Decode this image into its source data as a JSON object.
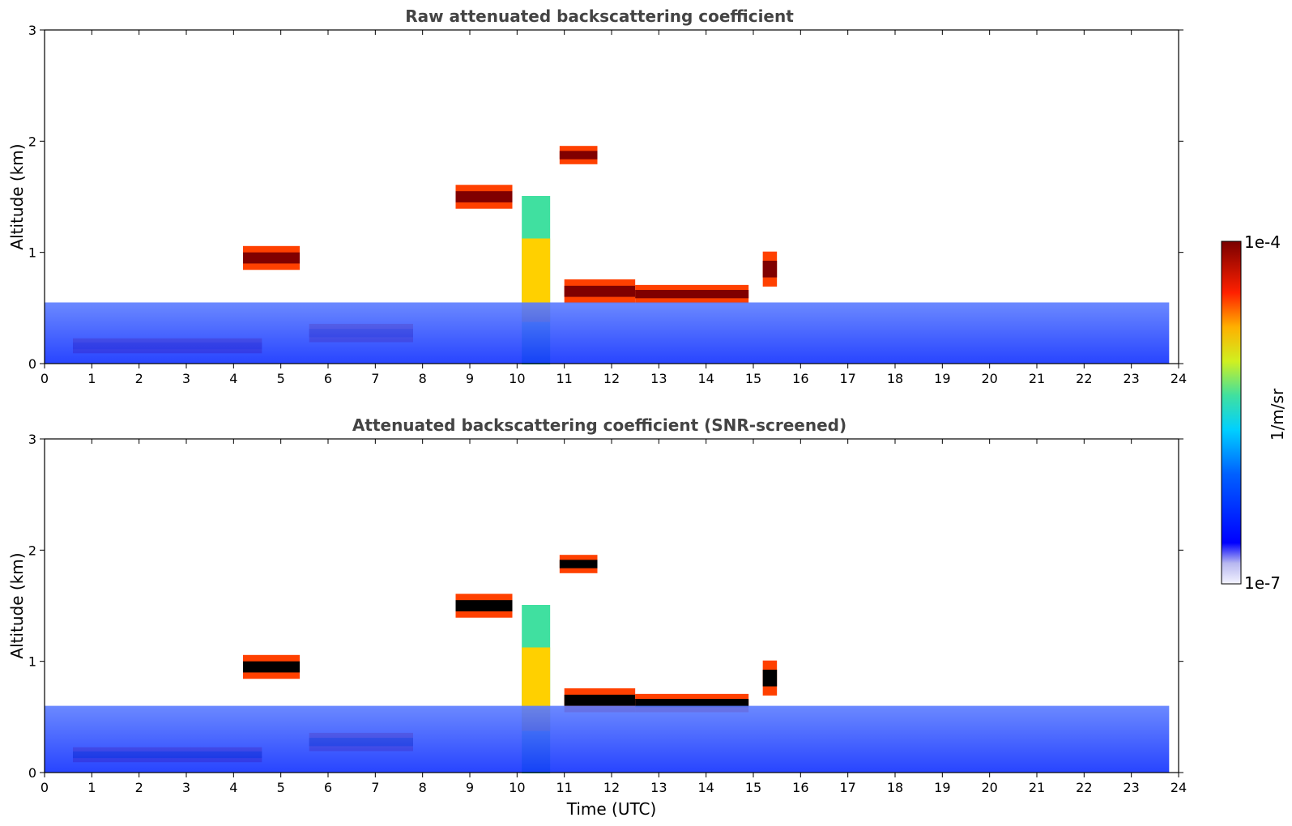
{
  "chart_data": [
    {
      "type": "heatmap",
      "title": "Raw attenuated backscattering coefficient",
      "ylabel": "Altitude (km)",
      "xlabel": "",
      "xlim": [
        0,
        24
      ],
      "ylim": [
        0,
        3
      ],
      "x_ticks": [
        "0",
        "1",
        "2",
        "3",
        "4",
        "5",
        "6",
        "7",
        "8",
        "9",
        "10",
        "11",
        "12",
        "13",
        "14",
        "15",
        "16",
        "17",
        "18",
        "19",
        "20",
        "21",
        "22",
        "23",
        "24"
      ],
      "y_ticks": [
        "0",
        "1",
        "2",
        "3"
      ],
      "data_extent_hours": [
        0,
        23.8
      ],
      "layers": [
        {
          "kind": "boundary_layer",
          "t": [
            0.6,
            4.6
          ],
          "alt": [
            0.1,
            0.22
          ]
        },
        {
          "kind": "cloud",
          "t": [
            4.2,
            5.4
          ],
          "alt": [
            0.85,
            1.05
          ]
        },
        {
          "kind": "cloud",
          "t": [
            5.6,
            7.8
          ],
          "alt": [
            0.2,
            0.35
          ]
        },
        {
          "kind": "cloud",
          "t": [
            8.7,
            9.9
          ],
          "alt": [
            1.4,
            1.6
          ]
        },
        {
          "kind": "cloud",
          "t": [
            10.9,
            11.7
          ],
          "alt": [
            1.8,
            1.95
          ]
        },
        {
          "kind": "cloud",
          "t": [
            11.0,
            12.5
          ],
          "alt": [
            0.55,
            0.75
          ]
        },
        {
          "kind": "cloud",
          "t": [
            12.5,
            14.9
          ],
          "alt": [
            0.55,
            0.7
          ]
        },
        {
          "kind": "cloud",
          "t": [
            15.2,
            15.5
          ],
          "alt": [
            0.7,
            1.0
          ]
        },
        {
          "kind": "precipitation",
          "t": [
            10.1,
            10.7
          ],
          "alt": [
            0,
            1.5
          ]
        },
        {
          "kind": "noise_floor",
          "t": [
            0,
            23.8
          ],
          "alt": [
            0,
            0.55
          ]
        }
      ]
    },
    {
      "type": "heatmap",
      "title": "Attenuated backscattering coefficient (SNR-screened)",
      "ylabel": "Altitude (km)",
      "xlabel": "Time (UTC)",
      "xlim": [
        0,
        24
      ],
      "ylim": [
        0,
        3
      ],
      "x_ticks": [
        "0",
        "1",
        "2",
        "3",
        "4",
        "5",
        "6",
        "7",
        "8",
        "9",
        "10",
        "11",
        "12",
        "13",
        "14",
        "15",
        "16",
        "17",
        "18",
        "19",
        "20",
        "21",
        "22",
        "23",
        "24"
      ],
      "y_ticks": [
        "0",
        "1",
        "2",
        "3"
      ],
      "data_extent_hours": [
        0,
        23.8
      ],
      "layers": [
        {
          "kind": "boundary_layer",
          "t": [
            0.6,
            4.6
          ],
          "alt": [
            0.1,
            0.22
          ]
        },
        {
          "kind": "cloud",
          "t": [
            4.2,
            5.4
          ],
          "alt": [
            0.85,
            1.05
          ]
        },
        {
          "kind": "cloud",
          "t": [
            5.6,
            7.8
          ],
          "alt": [
            0.2,
            0.35
          ]
        },
        {
          "kind": "cloud",
          "t": [
            8.7,
            9.9
          ],
          "alt": [
            1.4,
            1.6
          ]
        },
        {
          "kind": "cloud",
          "t": [
            10.9,
            11.7
          ],
          "alt": [
            1.8,
            1.95
          ]
        },
        {
          "kind": "cloud",
          "t": [
            11.0,
            12.5
          ],
          "alt": [
            0.55,
            0.75
          ]
        },
        {
          "kind": "cloud",
          "t": [
            12.5,
            14.9
          ],
          "alt": [
            0.55,
            0.7
          ]
        },
        {
          "kind": "cloud",
          "t": [
            15.2,
            15.5
          ],
          "alt": [
            0.7,
            1.0
          ]
        },
        {
          "kind": "precipitation",
          "t": [
            10.1,
            10.7
          ],
          "alt": [
            0,
            1.5
          ]
        },
        {
          "kind": "noise_floor",
          "t": [
            0,
            23.8
          ],
          "alt": [
            0,
            0.6
          ]
        }
      ]
    }
  ],
  "colorbar": {
    "label": "1/m/sr",
    "max_label": "1e-4",
    "min_label": "1e-7",
    "scale": "log",
    "colors": [
      "#ffffff",
      "#c8c8f5",
      "#0000ff",
      "#00c8ff",
      "#40e0b0",
      "#f0f000",
      "#ff8000",
      "#e00000",
      "#800000"
    ]
  }
}
